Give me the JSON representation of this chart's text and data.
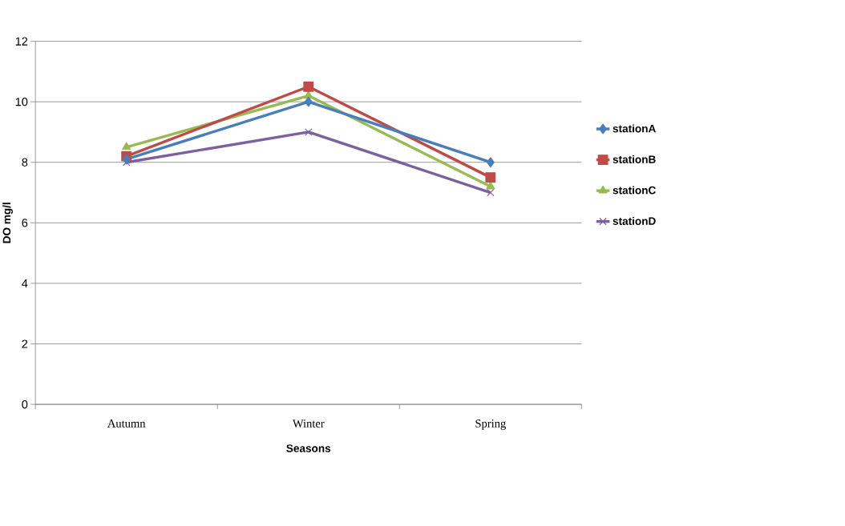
{
  "chart_data": {
    "type": "line",
    "xlabel": "Seasons",
    "ylabel": "DO mg/l",
    "categories": [
      "Autumn",
      "Winter",
      "Spring"
    ],
    "series": [
      {
        "name": "stationA",
        "color": "#4a7ebb",
        "marker": "diamond",
        "values": [
          8.1,
          10,
          8
        ]
      },
      {
        "name": "stationB",
        "color": "#be4b48",
        "marker": "square",
        "values": [
          8.2,
          10.5,
          7.5
        ]
      },
      {
        "name": "stationC",
        "color": "#98b954",
        "marker": "triangle",
        "values": [
          8.5,
          10.2,
          7.2
        ]
      },
      {
        "name": "stationD",
        "color": "#7d60a0",
        "marker": "cross",
        "values": [
          8,
          9,
          7
        ]
      }
    ],
    "ylim": [
      0,
      12
    ],
    "yticks": [
      0,
      2,
      4,
      6,
      8,
      10,
      12
    ],
    "grid": "y",
    "legend": "right",
    "line_style": "solid"
  }
}
